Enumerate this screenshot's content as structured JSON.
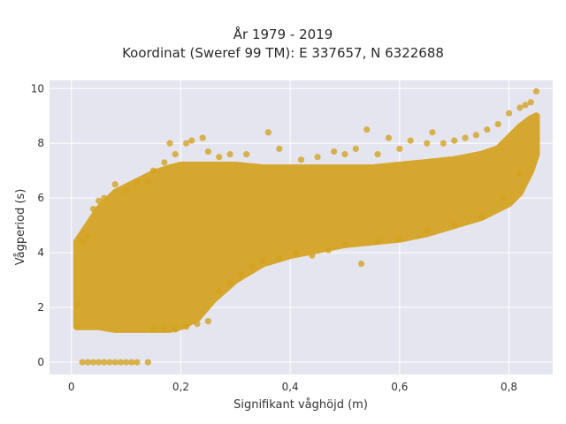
{
  "chart_data": {
    "type": "scatter",
    "title": "År 1979 - 2019",
    "subtitle": "Koordinat (Sweref 99 TM): E 337657, N 6322688",
    "xlabel": "Signifikant våghöjd (m)",
    "ylabel": "Vågperiod (s)",
    "xlim": [
      -0.04,
      0.88
    ],
    "ylim": [
      -0.45,
      10.3
    ],
    "xticks": [
      0,
      0.2,
      0.4,
      0.6,
      0.8
    ],
    "xtick_labels": [
      "0",
      "0,2",
      "0,4",
      "0,6",
      "0,8"
    ],
    "yticks": [
      0,
      2,
      4,
      6,
      8,
      10
    ],
    "ytick_labels": [
      "0",
      "2",
      "4",
      "6",
      "8",
      "10"
    ],
    "grid": true,
    "background": "#e5e5ef",
    "marker_color": "#d4a21f",
    "series": [
      {
        "points": [
          [
            0.02,
            0.0
          ],
          [
            0.03,
            0.0
          ],
          [
            0.04,
            0.0
          ],
          [
            0.05,
            0.0
          ],
          [
            0.06,
            0.0
          ],
          [
            0.07,
            0.0
          ],
          [
            0.08,
            0.0
          ],
          [
            0.09,
            0.0
          ],
          [
            0.1,
            0.0
          ],
          [
            0.11,
            0.0
          ],
          [
            0.12,
            0.0
          ],
          [
            0.14,
            0.0
          ],
          [
            0.01,
            1.3
          ],
          [
            0.01,
            2.1
          ],
          [
            0.02,
            4.4
          ],
          [
            0.03,
            4.6
          ],
          [
            0.04,
            5.6
          ],
          [
            0.05,
            5.9
          ],
          [
            0.06,
            6.0
          ],
          [
            0.08,
            6.5
          ],
          [
            0.1,
            6.3
          ],
          [
            0.12,
            6.6
          ],
          [
            0.14,
            6.6
          ],
          [
            0.15,
            7.0
          ],
          [
            0.17,
            7.3
          ],
          [
            0.18,
            8.0
          ],
          [
            0.19,
            7.6
          ],
          [
            0.21,
            8.0
          ],
          [
            0.22,
            8.1
          ],
          [
            0.24,
            8.2
          ],
          [
            0.25,
            7.7
          ],
          [
            0.27,
            7.5
          ],
          [
            0.29,
            7.6
          ],
          [
            0.32,
            7.6
          ],
          [
            0.36,
            8.4
          ],
          [
            0.38,
            7.8
          ],
          [
            0.42,
            7.4
          ],
          [
            0.45,
            7.5
          ],
          [
            0.48,
            7.7
          ],
          [
            0.5,
            7.6
          ],
          [
            0.52,
            7.8
          ],
          [
            0.54,
            8.5
          ],
          [
            0.56,
            7.6
          ],
          [
            0.58,
            8.2
          ],
          [
            0.6,
            7.8
          ],
          [
            0.62,
            8.1
          ],
          [
            0.65,
            8.0
          ],
          [
            0.66,
            8.4
          ],
          [
            0.68,
            8.0
          ],
          [
            0.7,
            8.1
          ],
          [
            0.72,
            8.2
          ],
          [
            0.74,
            8.3
          ],
          [
            0.76,
            8.5
          ],
          [
            0.78,
            8.7
          ],
          [
            0.8,
            9.1
          ],
          [
            0.82,
            9.3
          ],
          [
            0.83,
            9.4
          ],
          [
            0.84,
            9.5
          ],
          [
            0.85,
            9.9
          ],
          [
            0.15,
            1.2
          ],
          [
            0.17,
            1.2
          ],
          [
            0.19,
            1.2
          ],
          [
            0.21,
            1.3
          ],
          [
            0.23,
            1.4
          ],
          [
            0.25,
            1.5
          ],
          [
            0.27,
            2.6
          ],
          [
            0.29,
            2.9
          ],
          [
            0.31,
            3.2
          ],
          [
            0.33,
            3.5
          ],
          [
            0.35,
            3.7
          ],
          [
            0.38,
            3.8
          ],
          [
            0.41,
            4.0
          ],
          [
            0.44,
            3.9
          ],
          [
            0.47,
            4.1
          ],
          [
            0.5,
            4.3
          ],
          [
            0.53,
            3.6
          ],
          [
            0.56,
            4.4
          ],
          [
            0.6,
            4.5
          ],
          [
            0.65,
            4.8
          ],
          [
            0.7,
            5.0
          ],
          [
            0.75,
            5.3
          ],
          [
            0.79,
            6.0
          ],
          [
            0.82,
            6.9
          ]
        ]
      }
    ],
    "density_band": {
      "x_grid": [
        0.01,
        0.05,
        0.08,
        0.1,
        0.12,
        0.15,
        0.18,
        0.2,
        0.23,
        0.26,
        0.3,
        0.35,
        0.4,
        0.45,
        0.5,
        0.55,
        0.6,
        0.65,
        0.7,
        0.75,
        0.78,
        0.8,
        0.82,
        0.84,
        0.85
      ],
      "y_low": [
        1.3,
        1.3,
        1.2,
        1.2,
        1.2,
        1.2,
        1.2,
        1.3,
        1.6,
        2.3,
        3.0,
        3.6,
        3.9,
        4.1,
        4.3,
        4.4,
        4.5,
        4.7,
        5.0,
        5.3,
        5.6,
        5.8,
        6.2,
        7.0,
        7.6
      ],
      "y_high": [
        4.4,
        5.6,
        6.2,
        6.4,
        6.6,
        6.9,
        7.1,
        7.2,
        7.2,
        7.2,
        7.2,
        7.1,
        7.1,
        7.1,
        7.1,
        7.1,
        7.2,
        7.3,
        7.4,
        7.6,
        7.8,
        8.2,
        8.6,
        8.9,
        9.0
      ]
    }
  }
}
